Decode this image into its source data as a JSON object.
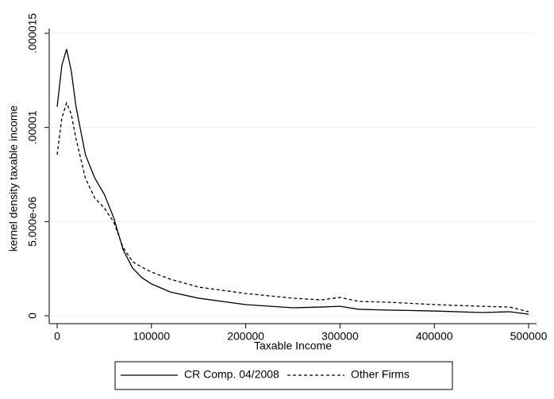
{
  "chart_data": {
    "type": "line",
    "y_label": "kernel density taxable income",
    "x_label": "Taxable Income",
    "x": [
      0,
      5000,
      10000,
      15000,
      20000,
      30000,
      40000,
      50000,
      60000,
      70000,
      80000,
      90000,
      100000,
      120000,
      150000,
      200000,
      250000,
      280000,
      300000,
      320000,
      350000,
      400000,
      450000,
      480000,
      500000
    ],
    "series": [
      {
        "name": "CR Comp. 04/2008",
        "color": "#000000",
        "line_style": "solid",
        "values": [
          1.11e-05,
          1.33e-05,
          1.416e-05,
          1.3e-05,
          1.11e-05,
          8.55e-06,
          7.3e-06,
          6.45e-06,
          5.2e-06,
          3.5e-06,
          2.53e-06,
          2.02e-06,
          1.69e-06,
          1.26e-06,
          9.3e-07,
          5.9e-07,
          4.2e-07,
          4.6e-07,
          5e-07,
          3.4e-07,
          3e-07,
          2.5e-07,
          1.7e-07,
          2.1e-07,
          8e-08
        ]
      },
      {
        "name": "Other Firms",
        "color": "#000000",
        "line_style": "dashed",
        "values": [
          8.55e-06,
          1.05e-05,
          1.13e-05,
          1.07e-05,
          9.4e-06,
          7.3e-06,
          6.24e-06,
          5.73e-06,
          4.97e-06,
          3.62e-06,
          2.87e-06,
          2.57e-06,
          2.32e-06,
          1.94e-06,
          1.52e-06,
          1.18e-06,
          9.3e-07,
          8.4e-07,
          9.7e-07,
          7.6e-07,
          7.2e-07,
          5.9e-07,
          5e-07,
          4.6e-07,
          2.1e-07
        ]
      }
    ],
    "xlim": [
      0,
      500000
    ],
    "xticks": [
      0,
      100000,
      200000,
      300000,
      400000,
      500000
    ],
    "ylim": [
      0,
      1.5e-05
    ],
    "yticks": [
      0,
      {
        "value": 5e-06,
        "label": "5.000e-06"
      },
      {
        "value": 1e-05,
        "label": ".00001"
      },
      {
        "value": 1.5e-05,
        "label": ".000015"
      }
    ],
    "grid": true,
    "legend": "bottom"
  }
}
